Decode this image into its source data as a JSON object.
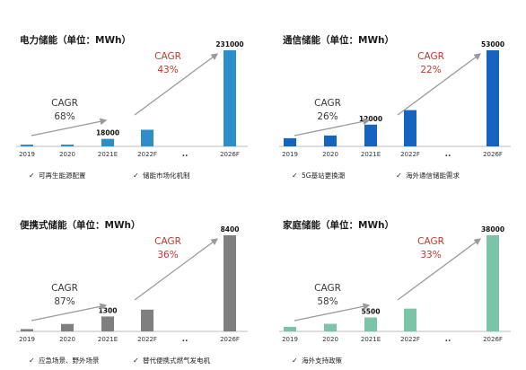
{
  "chart_data": [
    {
      "type": "bar",
      "title": "电力储能（单位：MWh）",
      "categories": [
        "2019",
        "2020",
        "2021E",
        "2022F",
        "..",
        "2026F"
      ],
      "values": [
        800,
        2000,
        18000,
        40000,
        null,
        231000
      ],
      "data_labels": [
        "",
        "",
        "18000",
        "",
        "",
        "231000"
      ],
      "ylim": [
        0,
        231000
      ],
      "color": "#2e8ec9",
      "cagr": [
        {
          "label": "CAGR",
          "value": "68%",
          "style": "gray"
        },
        {
          "label": "CAGR",
          "value": "43%",
          "style": "red"
        }
      ],
      "notes": [
        "可再生能源配置",
        "储能市场化机制"
      ]
    },
    {
      "type": "bar",
      "title": "通信储能（单位：MWh）",
      "categories": [
        "2019",
        "2020",
        "2021E",
        "2022F",
        "..",
        "2026F"
      ],
      "values": [
        4500,
        6000,
        12000,
        20000,
        null,
        53000
      ],
      "data_labels": [
        "",
        "",
        "12000",
        "",
        "",
        "53000"
      ],
      "ylim": [
        0,
        53000
      ],
      "color": "#1565c0",
      "cagr": [
        {
          "label": "CAGR",
          "value": "26%",
          "style": "gray"
        },
        {
          "label": "CAGR",
          "value": "22%",
          "style": "red"
        }
      ],
      "notes": [
        "5G基站更换潮",
        "海外通信储能需求"
      ]
    },
    {
      "type": "bar",
      "title": "便携式储能（单位：MWh）",
      "categories": [
        "2019",
        "2020",
        "2021E",
        "2022F",
        "..",
        "2026F"
      ],
      "values": [
        200,
        650,
        1300,
        1900,
        null,
        8400
      ],
      "data_labels": [
        "",
        "",
        "1300",
        "",
        "",
        "8400"
      ],
      "ylim": [
        0,
        8400
      ],
      "color": "#7f7f7f",
      "cagr": [
        {
          "label": "CAGR",
          "value": "87%",
          "style": "gray"
        },
        {
          "label": "CAGR",
          "value": "36%",
          "style": "red"
        }
      ],
      "notes": [
        "应急场景、野外场景",
        "替代便携式燃气发电机"
      ]
    },
    {
      "type": "bar",
      "title": "家庭储能（单位：MWh）",
      "categories": [
        "2019",
        "2020",
        "2021E",
        "2022F",
        "..",
        "2026F"
      ],
      "values": [
        1800,
        3000,
        5500,
        9000,
        null,
        38000
      ],
      "data_labels": [
        "",
        "",
        "5500",
        "",
        "",
        "38000"
      ],
      "ylim": [
        0,
        38000
      ],
      "color": "#7cc4a8",
      "cagr": [
        {
          "label": "CAGR",
          "value": "58%",
          "style": "gray"
        },
        {
          "label": "CAGR",
          "value": "33%",
          "style": "red"
        }
      ],
      "notes": [
        "海外支持政策",
        ""
      ]
    }
  ],
  "colors": {
    "gray_text": "#3a3a3a",
    "red_text": "#c0392b",
    "arrow": "#9a9a9a"
  }
}
